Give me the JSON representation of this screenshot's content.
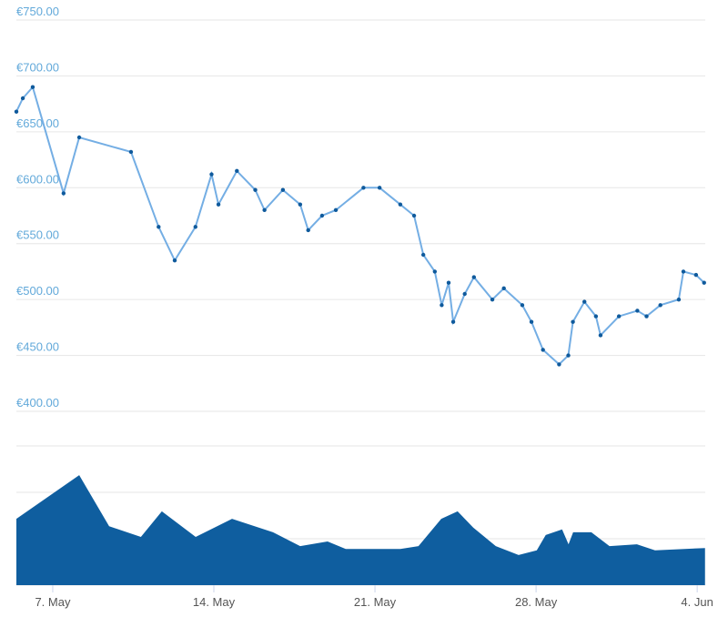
{
  "chart_data": [
    {
      "type": "line",
      "x": [
        5.42,
        5.7,
        6.13,
        7.47,
        8.15,
        10.4,
        11.6,
        12.3,
        13.2,
        13.9,
        14.2,
        15.0,
        15.8,
        16.2,
        17.0,
        17.75,
        18.1,
        18.7,
        19.3,
        20.5,
        21.2,
        22.1,
        22.7,
        23.1,
        23.6,
        23.9,
        24.2,
        24.4,
        24.9,
        25.3,
        26.1,
        26.6,
        27.4,
        27.8,
        28.3,
        29.0,
        29.4,
        29.6,
        30.1,
        30.6,
        30.8,
        31.6,
        32.4,
        32.8,
        33.4,
        34.2,
        34.4,
        34.95,
        35.3
      ],
      "values": [
        668,
        680,
        690,
        595,
        645,
        632,
        565,
        535,
        565,
        612,
        585,
        615,
        598,
        580,
        598,
        585,
        562,
        575,
        580,
        600,
        600,
        585,
        575,
        540,
        525,
        495,
        515,
        480,
        505,
        520,
        500,
        510,
        495,
        480,
        455,
        442,
        450,
        480,
        498,
        485,
        468,
        485,
        490,
        485,
        495,
        500,
        525,
        522,
        515
      ],
      "line_color": "#74aee4",
      "marker_color": "#0f5a9c",
      "xlim": [
        5.42,
        35.35
      ],
      "ylim": [
        400,
        750
      ],
      "yticks": [
        {
          "value": 400,
          "label": "€400.00"
        },
        {
          "value": 450,
          "label": "€450.00"
        },
        {
          "value": 500,
          "label": "€500.00"
        },
        {
          "value": 550,
          "label": "€550.00"
        },
        {
          "value": 600,
          "label": "€600.00"
        },
        {
          "value": 650,
          "label": "€650.00"
        },
        {
          "value": 700,
          "label": "€700.00"
        },
        {
          "value": 750,
          "label": "€750.00"
        }
      ],
      "grid": true
    },
    {
      "type": "area",
      "x": [
        5.42,
        8.15,
        9.45,
        10.83,
        11.74,
        13.21,
        14.79,
        16.57,
        17.75,
        18.94,
        19.73,
        22.1,
        22.89,
        23.88,
        24.59,
        25.27,
        26.25,
        27.24,
        28.03,
        28.42,
        29.13,
        29.41,
        29.61,
        30.4,
        31.19,
        32.38,
        33.17,
        35.34
      ],
      "values": [
        1.43,
        2.37,
        1.27,
        1.04,
        1.59,
        1.04,
        1.43,
        1.14,
        0.84,
        0.94,
        0.78,
        0.78,
        0.84,
        1.43,
        1.59,
        1.24,
        0.84,
        0.65,
        0.75,
        1.08,
        1.2,
        0.88,
        1.14,
        1.14,
        0.84,
        0.88,
        0.75,
        0.8
      ],
      "color": "#0f5e9f",
      "xlim": [
        5.42,
        35.35
      ],
      "ylim": [
        0,
        3
      ],
      "yticks": [
        0,
        1,
        2,
        3
      ],
      "xticks": [
        {
          "value": 7,
          "label": "7. May"
        },
        {
          "value": 14,
          "label": "14. May"
        },
        {
          "value": 21,
          "label": "21. May"
        },
        {
          "value": 28,
          "label": "28. May"
        },
        {
          "value": 35,
          "label": "4. Jun"
        }
      ],
      "grid": true
    }
  ]
}
